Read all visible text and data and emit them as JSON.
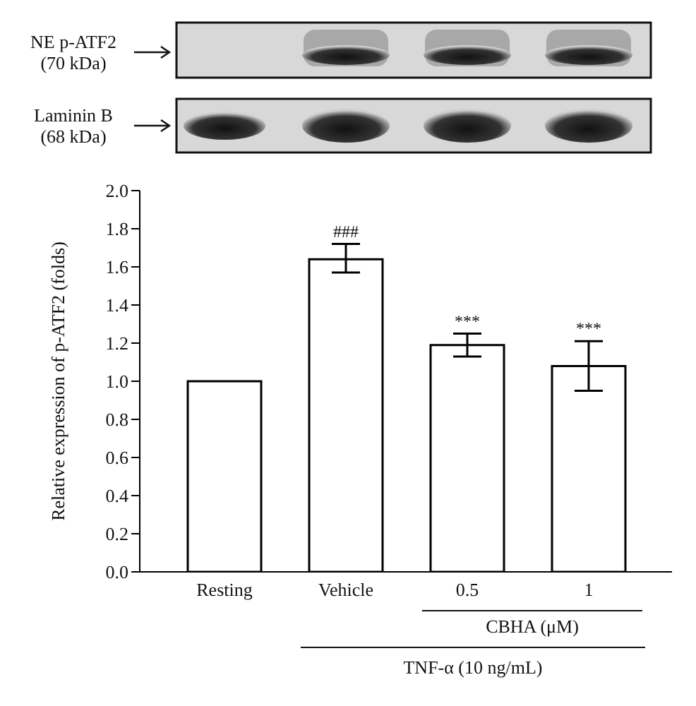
{
  "chart_data": {
    "type": "bar",
    "ylabel": "Relative expression of p-ATF2 (folds)",
    "categories": [
      "Resting",
      "Vehicle",
      "0.5",
      "1"
    ],
    "values": [
      1.0,
      1.64,
      1.19,
      1.08
    ],
    "errors": [
      null,
      [
        1.57,
        1.72
      ],
      [
        1.13,
        1.25
      ],
      [
        0.95,
        1.21
      ]
    ],
    "color": "#ffffff",
    "ylim": [
      0,
      2
    ],
    "yticks": [
      {
        "value": 0,
        "label": "0.0"
      },
      {
        "value": 0.2,
        "label": "0.2"
      },
      {
        "value": 0.4,
        "label": "0.4"
      },
      {
        "value": 0.6,
        "label": "0.6"
      },
      {
        "value": 0.8,
        "label": "0.8"
      },
      {
        "value": 1,
        "label": "1.0"
      },
      {
        "value": 1.2,
        "label": "1.2"
      },
      {
        "value": 1.4,
        "label": "1.4"
      },
      {
        "value": 1.6,
        "label": "1.6"
      },
      {
        "value": 1.8,
        "label": "1.8"
      },
      {
        "value": 2,
        "label": "2.0"
      }
    ],
    "annotations": [
      {
        "text": "###",
        "x": "Vehicle",
        "y": 1.72
      },
      {
        "text": "***",
        "x": "0.5",
        "y": 1.25
      },
      {
        "text": "***",
        "x": "1",
        "y": 1.21
      },
      "NE p-ATF2 (70 kDa)",
      "Laminin B (68 kDa)",
      "CBHA (μM)",
      "TNF-α (10 ng/mL)"
    ]
  }
}
